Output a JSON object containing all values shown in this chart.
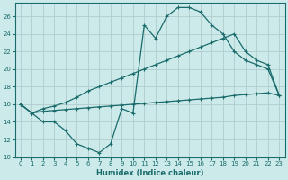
{
  "xlabel": "Humidex (Indice chaleur)",
  "background_color": "#cceaea",
  "grid_color": "#b0cccc",
  "line_color": "#1a6b6b",
  "xlim": [
    -0.5,
    23.5
  ],
  "ylim": [
    10,
    27.5
  ],
  "xticks": [
    0,
    1,
    2,
    3,
    4,
    5,
    6,
    7,
    8,
    9,
    10,
    11,
    12,
    13,
    14,
    15,
    16,
    17,
    18,
    19,
    20,
    21,
    22,
    23
  ],
  "yticks": [
    10,
    12,
    14,
    16,
    18,
    20,
    22,
    24,
    26
  ],
  "line1_x": [
    0,
    1,
    2,
    3,
    4,
    5,
    6,
    7,
    8,
    9,
    10,
    11,
    12,
    13,
    14,
    15,
    16,
    17,
    18,
    19,
    20,
    21,
    22,
    23
  ],
  "line1_y": [
    16.0,
    15.0,
    14.0,
    14.0,
    13.0,
    11.5,
    11.0,
    10.5,
    11.5,
    15.5,
    15.0,
    25.0,
    23.5,
    26.0,
    27.0,
    27.0,
    26.5,
    25.0,
    24.0,
    22.0,
    21.0,
    20.5,
    20.0,
    17.0
  ],
  "line2_x": [
    0,
    1,
    2,
    3,
    4,
    5,
    6,
    7,
    8,
    9,
    10,
    11,
    12,
    13,
    14,
    15,
    16,
    17,
    18,
    19,
    20,
    21,
    22,
    23
  ],
  "line2_y": [
    16.0,
    15.0,
    15.5,
    15.8,
    16.2,
    16.8,
    17.5,
    18.0,
    18.5,
    19.0,
    19.5,
    20.0,
    20.5,
    21.0,
    21.5,
    22.0,
    22.5,
    23.0,
    23.5,
    24.0,
    22.0,
    21.0,
    20.5,
    17.0
  ],
  "line3_x": [
    0,
    1,
    2,
    3,
    4,
    5,
    6,
    7,
    8,
    9,
    10,
    11,
    12,
    13,
    14,
    15,
    16,
    17,
    18,
    19,
    20,
    21,
    22,
    23
  ],
  "line3_y": [
    16.0,
    15.0,
    15.2,
    15.3,
    15.4,
    15.5,
    15.6,
    15.7,
    15.8,
    15.9,
    16.0,
    16.1,
    16.2,
    16.3,
    16.4,
    16.5,
    16.6,
    16.7,
    16.8,
    17.0,
    17.1,
    17.2,
    17.3,
    17.0
  ]
}
